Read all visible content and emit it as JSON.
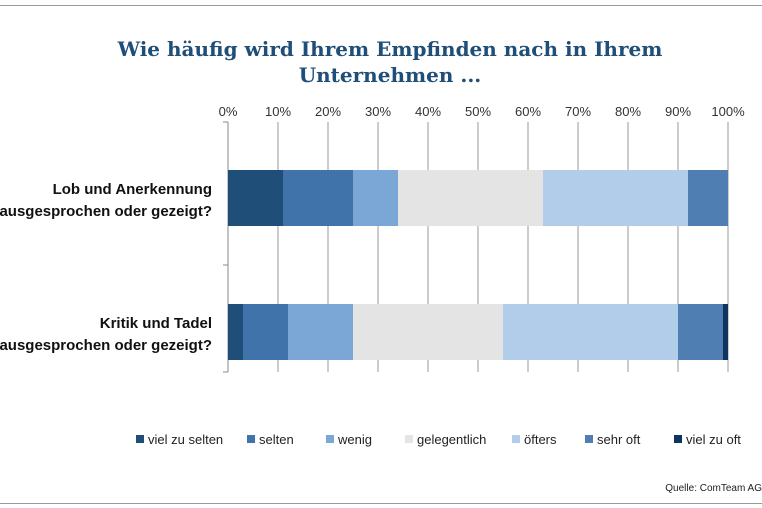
{
  "chart_data": {
    "type": "bar",
    "orientation": "horizontal",
    "stacked": true,
    "title": "Wie häufig wird Ihrem Empfinden nach in Ihrem Unternehmen ...",
    "xticks": [
      "0%",
      "10%",
      "20%",
      "30%",
      "40%",
      "50%",
      "60%",
      "70%",
      "80%",
      "90%",
      "100%"
    ],
    "xlim": [
      0,
      100
    ],
    "grid": true,
    "legend_position": "bottom",
    "categories": [
      [
        "Lob und Anerkennung",
        "ausgesprochen oder gezeigt?"
      ],
      [
        "Kritik und Tadel",
        "ausgesprochen oder gezeigt?"
      ]
    ],
    "series": [
      {
        "name": "viel zu selten",
        "color": "#1f4e79",
        "values": [
          11,
          3
        ]
      },
      {
        "name": "selten",
        "color": "#3f73a9",
        "values": [
          14,
          9
        ]
      },
      {
        "name": "wenig",
        "color": "#7aa7d6",
        "values": [
          9,
          13
        ]
      },
      {
        "name": "gelegentlich",
        "color": "#e4e4e4",
        "values": [
          29,
          30
        ]
      },
      {
        "name": "öfters",
        "color": "#b2cde9",
        "values": [
          29,
          35
        ]
      },
      {
        "name": "sehr oft",
        "color": "#4f7fb2",
        "values": [
          8,
          9
        ]
      },
      {
        "name": "viel zu oft",
        "color": "#0d3560",
        "values": [
          0,
          1
        ]
      }
    ]
  },
  "source": "Quelle: ComTeam AG"
}
